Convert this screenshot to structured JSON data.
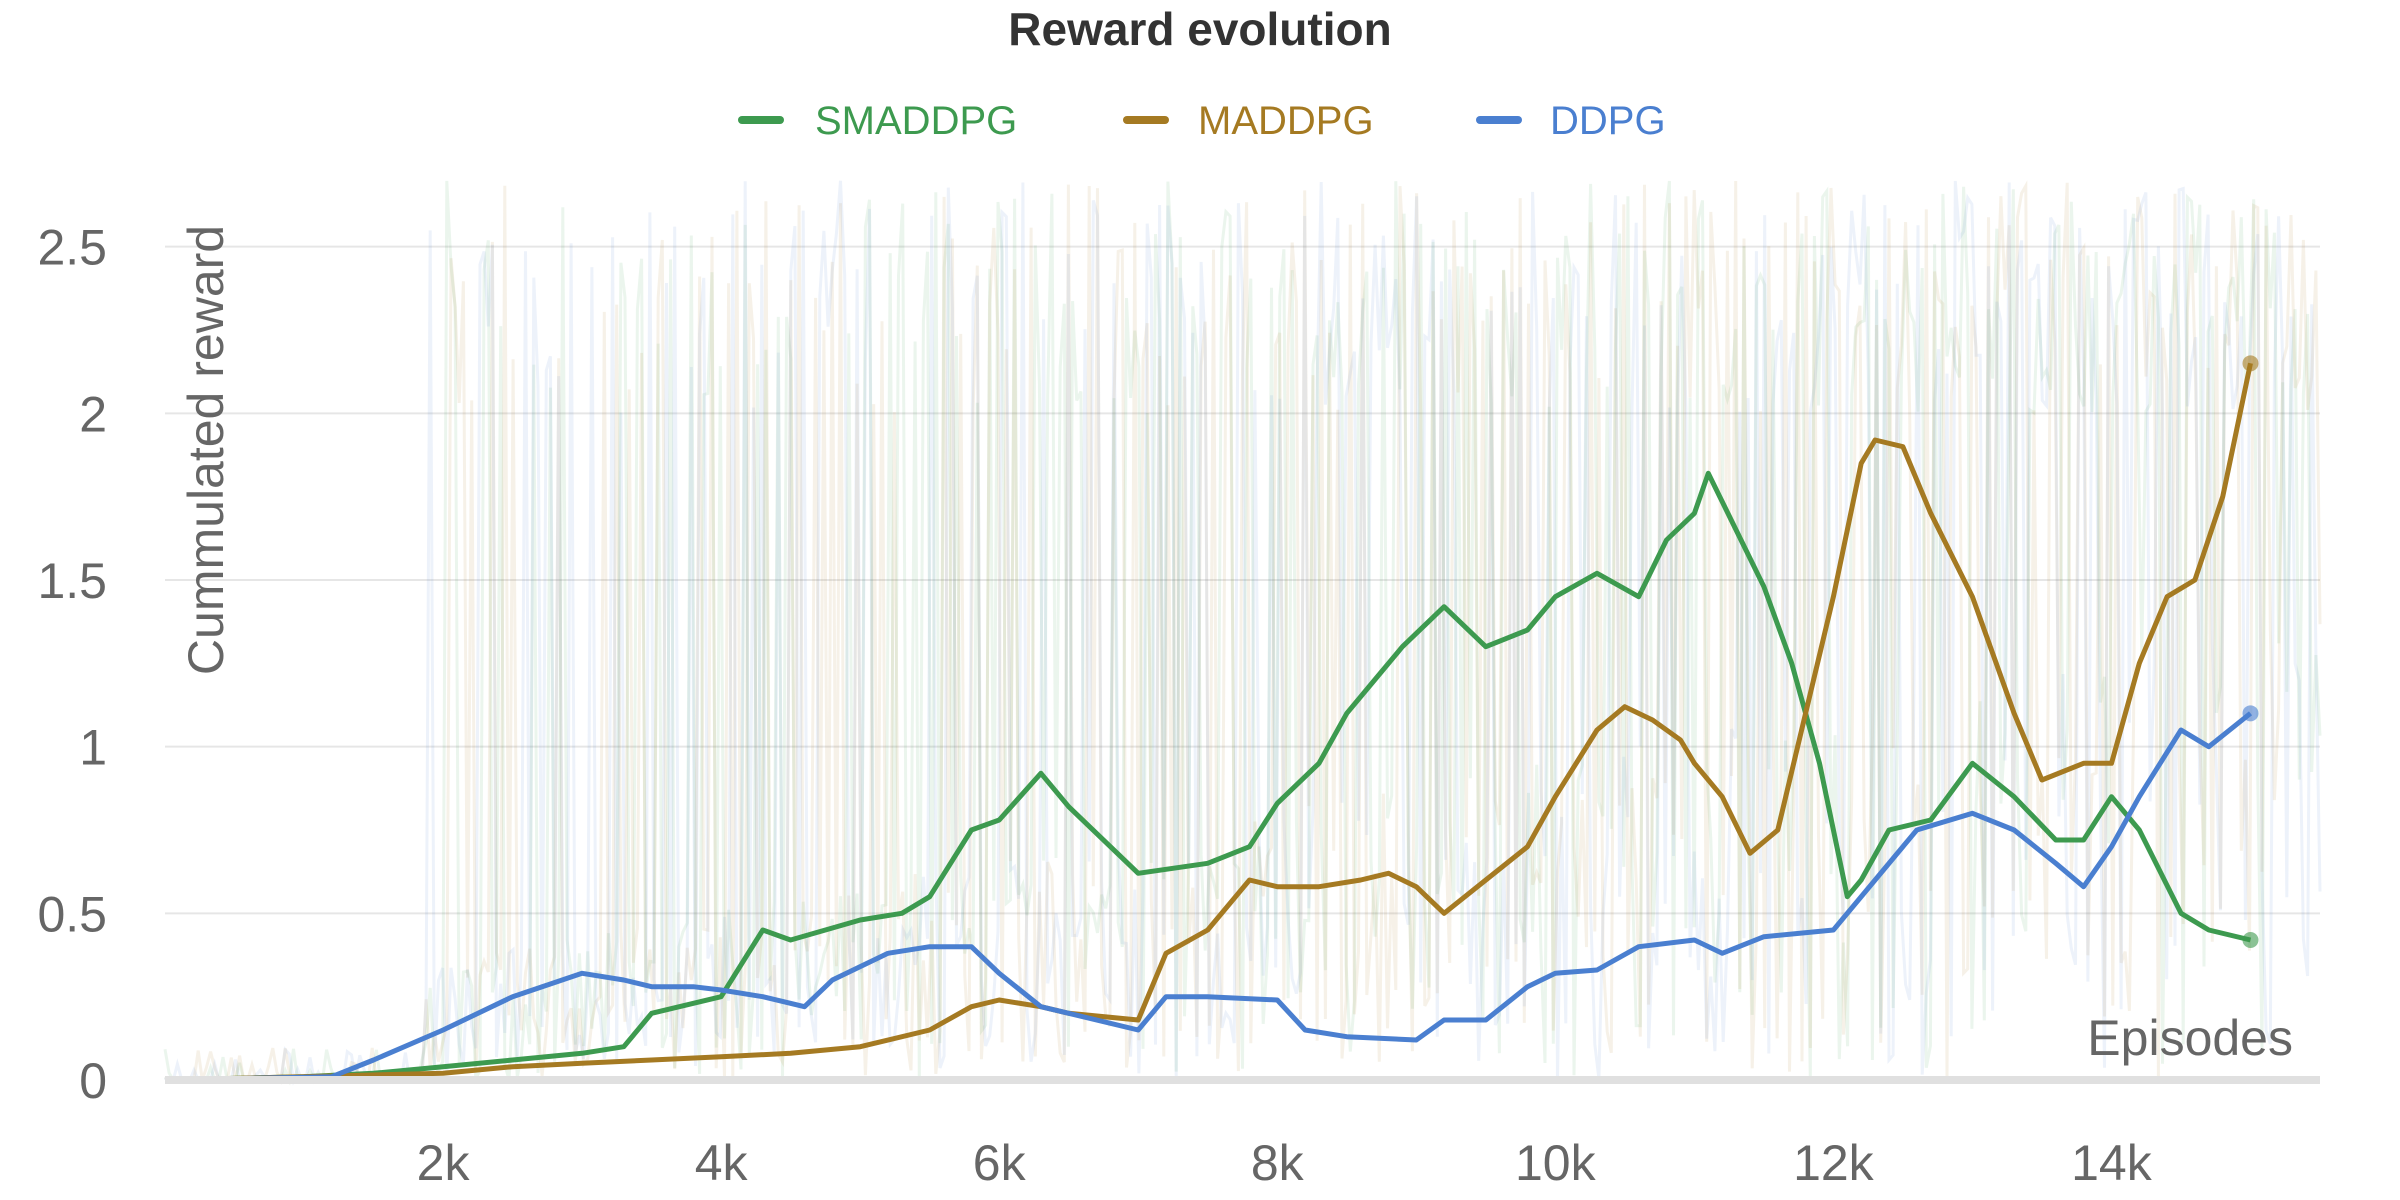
{
  "chart_data": {
    "type": "line",
    "title": "Reward evolution",
    "xlabel": "Episodes",
    "ylabel": "Cummulated reward",
    "xlim": [
      0,
      15500
    ],
    "ylim": [
      0,
      2.7
    ],
    "x_ticks": [
      {
        "value": 2000,
        "label": "2k"
      },
      {
        "value": 4000,
        "label": "4k"
      },
      {
        "value": 6000,
        "label": "6k"
      },
      {
        "value": 8000,
        "label": "8k"
      },
      {
        "value": 10000,
        "label": "10k"
      },
      {
        "value": 12000,
        "label": "12k"
      },
      {
        "value": 14000,
        "label": "14k"
      }
    ],
    "y_ticks": [
      {
        "value": 0,
        "label": "0"
      },
      {
        "value": 0.5,
        "label": "0.5"
      },
      {
        "value": 1,
        "label": "1"
      },
      {
        "value": 1.5,
        "label": "1.5"
      },
      {
        "value": 2,
        "label": "2"
      },
      {
        "value": 2.5,
        "label": "2.5"
      }
    ],
    "grid": true,
    "legend_position": "top-center",
    "series": [
      {
        "name": "SMADDPG",
        "color": "#3d9a4f",
        "x": [
          0,
          1000,
          1500,
          2000,
          2500,
          3000,
          3300,
          3500,
          4000,
          4300,
          4500,
          5000,
          5300,
          5500,
          5800,
          6000,
          6300,
          6500,
          7000,
          7500,
          7800,
          8000,
          8300,
          8500,
          8700,
          8900,
          9200,
          9500,
          9800,
          10000,
          10300,
          10600,
          10800,
          11000,
          11100,
          11300,
          11500,
          11700,
          11900,
          12100,
          12200,
          12400,
          12700,
          13000,
          13300,
          13600,
          13800,
          14000,
          14200,
          14500,
          14700,
          15000
        ],
        "values": [
          0,
          0.01,
          0.02,
          0.04,
          0.06,
          0.08,
          0.1,
          0.2,
          0.25,
          0.45,
          0.42,
          0.48,
          0.5,
          0.55,
          0.75,
          0.78,
          0.92,
          0.82,
          0.62,
          0.65,
          0.7,
          0.83,
          0.95,
          1.1,
          1.2,
          1.3,
          1.42,
          1.3,
          1.35,
          1.45,
          1.52,
          1.45,
          1.62,
          1.7,
          1.82,
          1.65,
          1.48,
          1.25,
          0.95,
          0.55,
          0.6,
          0.75,
          0.78,
          0.95,
          0.85,
          0.72,
          0.72,
          0.85,
          0.75,
          0.5,
          0.45,
          0.42
        ]
      },
      {
        "name": "MADDPG",
        "color": "#a57a22",
        "x": [
          0,
          2000,
          2500,
          3000,
          3500,
          4000,
          4500,
          5000,
          5500,
          5800,
          6000,
          6300,
          6500,
          7000,
          7200,
          7500,
          7800,
          8000,
          8300,
          8600,
          8800,
          9000,
          9200,
          9500,
          9800,
          10000,
          10300,
          10500,
          10700,
          10900,
          11000,
          11200,
          11400,
          11600,
          11800,
          12000,
          12200,
          12300,
          12500,
          12700,
          13000,
          13300,
          13500,
          13800,
          14000,
          14200,
          14400,
          14600,
          14800,
          15000
        ],
        "values": [
          0,
          0.02,
          0.04,
          0.05,
          0.06,
          0.07,
          0.08,
          0.1,
          0.15,
          0.22,
          0.24,
          0.22,
          0.2,
          0.18,
          0.38,
          0.45,
          0.6,
          0.58,
          0.58,
          0.6,
          0.62,
          0.58,
          0.5,
          0.6,
          0.7,
          0.85,
          1.05,
          1.12,
          1.08,
          1.02,
          0.95,
          0.85,
          0.68,
          0.75,
          1.1,
          1.45,
          1.85,
          1.92,
          1.9,
          1.7,
          1.45,
          1.1,
          0.9,
          0.95,
          0.95,
          1.25,
          1.45,
          1.5,
          1.75,
          2.15
        ]
      },
      {
        "name": "DDPG",
        "color": "#4a7fd0",
        "x": [
          0,
          1200,
          1500,
          2000,
          2500,
          3000,
          3300,
          3500,
          3800,
          4000,
          4300,
          4600,
          4800,
          5200,
          5500,
          5800,
          6000,
          6300,
          6500,
          7000,
          7200,
          7500,
          8000,
          8200,
          8500,
          9000,
          9200,
          9500,
          9800,
          10000,
          10300,
          10600,
          11000,
          11200,
          11500,
          12000,
          12300,
          12600,
          13000,
          13300,
          13600,
          13800,
          14000,
          14200,
          14500,
          14700,
          15000
        ],
        "values": [
          0,
          0.01,
          0.06,
          0.15,
          0.25,
          0.32,
          0.3,
          0.28,
          0.28,
          0.27,
          0.25,
          0.22,
          0.3,
          0.38,
          0.4,
          0.4,
          0.32,
          0.22,
          0.2,
          0.15,
          0.25,
          0.25,
          0.24,
          0.15,
          0.13,
          0.12,
          0.18,
          0.18,
          0.28,
          0.32,
          0.33,
          0.4,
          0.42,
          0.38,
          0.43,
          0.45,
          0.6,
          0.75,
          0.8,
          0.75,
          0.65,
          0.58,
          0.7,
          0.85,
          1.05,
          1.0,
          1.1
        ]
      }
    ]
  }
}
